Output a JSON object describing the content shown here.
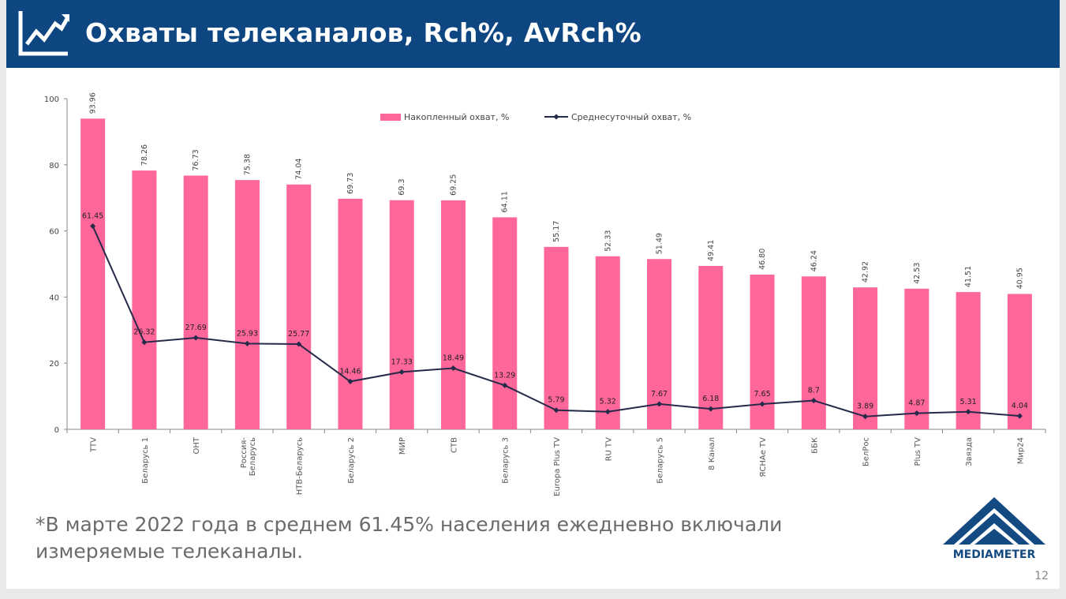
{
  "header": {
    "title": "Охваты телеканалов, Rch%, AvRch%"
  },
  "footnote": "*В марте 2022 года в среднем 61.45% населения ежедневно включали измеряемые телеканалы.",
  "logo": {
    "text": "MEDIAMETER",
    "color": "#134a82"
  },
  "page_number": "12",
  "chart_data": {
    "type": "bar",
    "title": "",
    "categories": [
      "TTV",
      "Беларусь 1",
      "ОНТ",
      "Россия-Беларусь",
      "НТВ-Беларусь",
      "Беларусь 2",
      "МИР",
      "СТВ",
      "Беларусь 3",
      "Europa Plus TV",
      "RU TV",
      "Беларусь 5",
      "8 Канал",
      "ЯСНАе TV",
      "ББК",
      "БелРос",
      "Plus TV",
      "Звязда",
      "Мир24"
    ],
    "series": [
      {
        "name": "Накопленный охват, %",
        "type": "bar",
        "color": "#ff6699",
        "values": [
          93.96,
          78.26,
          76.73,
          75.38,
          74.04,
          69.73,
          69.3,
          69.25,
          64.11,
          55.17,
          52.33,
          51.49,
          49.41,
          46.8,
          46.24,
          42.92,
          42.53,
          41.51,
          40.95
        ],
        "labels": [
          "93.96",
          "78.26",
          "76.73",
          "75.38",
          "74.04",
          "69.73",
          "69.3",
          "69.25",
          "64.11",
          "55.17",
          "52.33",
          "51.49",
          "49.41",
          "46.80",
          "46.24",
          "42.92",
          "42.53",
          "41.51",
          "40.95"
        ]
      },
      {
        "name": "Среднесуточный охват, %",
        "type": "line",
        "color": "#262a4a",
        "values": [
          61.45,
          26.32,
          27.69,
          25.93,
          25.77,
          14.46,
          17.33,
          18.49,
          13.29,
          5.79,
          5.32,
          7.67,
          6.18,
          7.65,
          8.7,
          3.89,
          4.87,
          5.31,
          4.04
        ],
        "labels": [
          "61.45",
          "26.32",
          "27.69",
          "25.93",
          "25.77",
          "14.46",
          "17.33",
          "18.49",
          "13.29",
          "5.79",
          "5.32",
          "7.67",
          "6.18",
          "7.65",
          "8.7",
          "3.89",
          "4.87",
          "5.31",
          "4.04"
        ]
      }
    ],
    "yticks": [
      0,
      20,
      40,
      60,
      80,
      100
    ],
    "ylim": [
      0,
      100
    ],
    "grid": false,
    "legend": "top-center"
  }
}
